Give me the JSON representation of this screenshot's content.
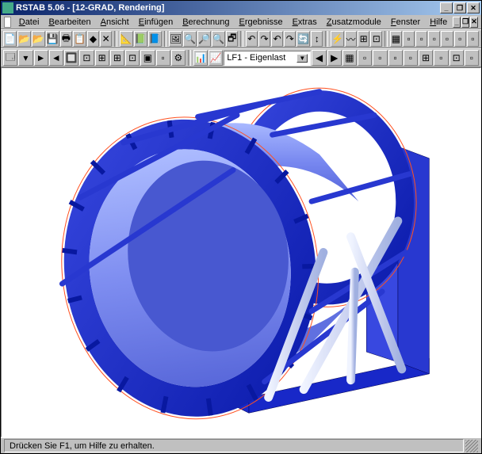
{
  "title": "RSTAB 5.06 - [12-GRAD, Rendering]",
  "menus": [
    {
      "u": "D",
      "rest": "atei"
    },
    {
      "u": "B",
      "rest": "earbeiten"
    },
    {
      "u": "A",
      "rest": "nsicht"
    },
    {
      "u": "E",
      "rest": "infügen"
    },
    {
      "u": "B",
      "rest": "erechnung"
    },
    {
      "u": "E",
      "rest": "rgebnisse"
    },
    {
      "u": "E",
      "rest": "xtras"
    },
    {
      "u": "Z",
      "rest": "usatzmodule"
    },
    {
      "u": "F",
      "rest": "enster"
    },
    {
      "u": "H",
      "rest": "ilfe"
    }
  ],
  "toolbar1_icons": [
    "📄",
    "📂",
    "📂",
    "💾",
    "🖶",
    "📋",
    "◆",
    "✕",
    " ",
    "📐",
    "📗",
    "📘",
    " ",
    "🖼",
    "🔍",
    "🔎",
    "🔍",
    "🗗",
    " ",
    "↶",
    "↷",
    "↶",
    "↷",
    "🔄",
    "↕",
    " ",
    "⚡",
    "〰",
    "⊞",
    "⊡",
    " ",
    "▦",
    "▫",
    "▫",
    "▫",
    "▫",
    "▫",
    "▫"
  ],
  "toolbar2_icons": [
    "🗔",
    "▾",
    "►",
    "◄",
    "🔲",
    "⊡",
    "⊞",
    "⊞",
    "⊡",
    "▣",
    "▫",
    "⚙"
  ],
  "combo1_icons": [
    "📊",
    "📈"
  ],
  "combo_value": "LF1 - Eigenlast",
  "nav_icons": [
    "◀",
    "▶",
    "▦",
    "▫",
    "▫",
    "▫",
    "▫",
    "⊞",
    "▫",
    "⊡",
    "▫"
  ],
  "status": "Drücken Sie F1, um Hilfe zu erhalten.",
  "colors": {
    "structure_dark": "#0818a8",
    "structure_mid": "#2838d0",
    "structure_light": "#5868f0",
    "cylinder": "#8898f8",
    "strut": "#d8e0f8",
    "outline": "#ff5020"
  }
}
